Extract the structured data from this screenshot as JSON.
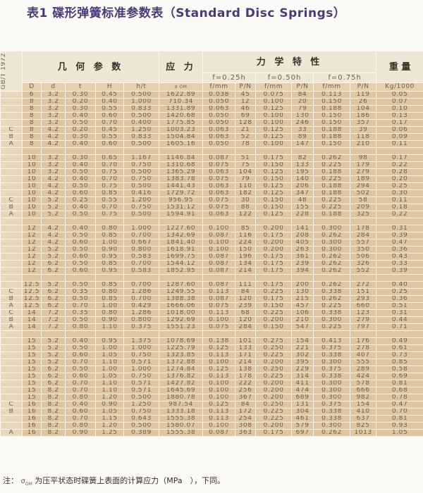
{
  "title": "表1  碟形弹簧标准参数表（Standard Disc Springs）",
  "header": {
    "standard": "GB/T 1972",
    "geometry": "几 何 参 数",
    "stress": "应 力",
    "mechanics": "力 学 特 性",
    "weight": "重 量",
    "f_groups": [
      "f=0.25h",
      "f=0.50h",
      "f=0.75h"
    ],
    "columns": [
      "D",
      "d",
      "t",
      "H",
      "h/t",
      "σ OM",
      "f/mm",
      "P/N",
      "f/mm",
      "P/N",
      "f/mm",
      "P/N",
      "Kg/1000"
    ]
  },
  "rows": [
    [
      "",
      "6",
      "3.2",
      "0.30",
      "0.45",
      "0.500",
      "1622.89",
      "0.038",
      "45",
      "0.075",
      "84",
      "0.113",
      "119",
      "0.05"
    ],
    [
      "",
      "8",
      "3.2",
      "0.20",
      "0.40",
      "1.000",
      "710.34",
      "0.050",
      "12",
      "0.100",
      "20",
      "0.150",
      "26",
      "0.07"
    ],
    [
      "",
      "8",
      "3.2",
      "0.30",
      "0.55",
      "0.833",
      "1331.89",
      "0.063",
      "46",
      "0.125",
      "79",
      "0.188",
      "104",
      "0.10"
    ],
    [
      "",
      "8",
      "3.2",
      "0.40",
      "0.60",
      "0.500",
      "1420.68",
      "0.050",
      "69",
      "0.100",
      "130",
      "0.150",
      "186",
      "0.13"
    ],
    [
      "",
      "8",
      "3.2",
      "0.50",
      "0.70",
      "0.400",
      "1775.85",
      "0.050",
      "128",
      "0.100",
      "246",
      "0.150",
      "357",
      "0.17"
    ],
    [
      "C",
      "8",
      "4.2",
      "0.20",
      "0.45",
      "1.250",
      "1003.23",
      "0.063",
      "21",
      "0.125",
      "33",
      "0.188",
      "39",
      "0.06"
    ],
    [
      "B",
      "8",
      "4.2",
      "0.30",
      "0.55",
      "0.833",
      "1504.84",
      "0.063",
      "52",
      "0.125",
      "89",
      "0.188",
      "118",
      "0.09"
    ],
    [
      "A",
      "8",
      "4.2",
      "0.40",
      "0.60",
      "0.500",
      "1605.16",
      "0.050",
      "78",
      "0.100",
      "147",
      "0.150",
      "210",
      "0.11"
    ],
    [],
    [
      "",
      "10",
      "3.2",
      "0.30",
      "0.65",
      "1.167",
      "1146.84",
      "0.087",
      "51",
      "0.175",
      "82",
      "0.262",
      "98",
      "0.17"
    ],
    [
      "",
      "10",
      "3.2",
      "0.40",
      "0.70",
      "0.750",
      "1310.68",
      "0.075",
      "75",
      "0.150",
      "133",
      "0.225",
      "179",
      "0.22"
    ],
    [
      "",
      "10",
      "3.2",
      "0.50",
      "0.75",
      "0.500",
      "1365.29",
      "0.063",
      "104",
      "0.125",
      "195",
      "0.188",
      "279",
      "0.28"
    ],
    [
      "",
      "10",
      "4.2",
      "0.40",
      "0.70",
      "0.750",
      "1383.78",
      "0.075",
      "79",
      "0.150",
      "140",
      "0.225",
      "189",
      "0.20"
    ],
    [
      "",
      "10",
      "4.2",
      "0.50",
      "0.75",
      "0.500",
      "1441.43",
      "0.063",
      "110",
      "0.125",
      "206",
      "0.188",
      "294",
      "0.25"
    ],
    [
      "",
      "10",
      "4.2",
      "0.60",
      "0.85",
      "0.416",
      "1729.72",
      "0.063",
      "182",
      "0.125",
      "347",
      "0.188",
      "502",
      "0.30"
    ],
    [
      "C",
      "10",
      "5.2",
      "0.25",
      "0.55",
      "1.200",
      "956.95",
      "0.075",
      "30",
      "0.150",
      "48",
      "0.225",
      "58",
      "0.11"
    ],
    [
      "B",
      "10",
      "5.2",
      "0.40",
      "0.70",
      "0.750",
      "1531.12",
      "0.075",
      "88",
      "0.150",
      "155",
      "0.225",
      "209",
      "0.18"
    ],
    [
      "A",
      "10",
      "5.2",
      "0.50",
      "0.75",
      "0.500",
      "1594.91",
      "0.063",
      "122",
      "0.125",
      "228",
      "0.188",
      "325",
      "0.22"
    ],
    [],
    [
      "",
      "12",
      "4.2",
      "0.40",
      "0.80",
      "1.000",
      "1227.60",
      "0.100",
      "85",
      "0.200",
      "141",
      "0.300",
      "178",
      "0.31"
    ],
    [
      "",
      "12",
      "4.2",
      "0.50",
      "0.85",
      "0.700",
      "1342.69",
      "0.087",
      "116",
      "0.175",
      "208",
      "0.262",
      "284",
      "0.39"
    ],
    [
      "",
      "12",
      "4.2",
      "0.60",
      "1.00",
      "0.667",
      "1841.40",
      "0.100",
      "224",
      "0.200",
      "405",
      "0.300",
      "557",
      "0.47"
    ],
    [
      "",
      "12",
      "5.2",
      "0.50",
      "0.90",
      "0.800",
      "1618.91",
      "0.100",
      "150",
      "0.200",
      "263",
      "0.300",
      "350",
      "0.36"
    ],
    [
      "",
      "12",
      "5.2",
      "0.60",
      "0.95",
      "0.583",
      "1699.75",
      "0.087",
      "196",
      "0.175",
      "361",
      "0.262",
      "506",
      "0.43"
    ],
    [
      "",
      "12",
      "6.2",
      "0.50",
      "0.85",
      "0.700",
      "1544.12",
      "0.087",
      "134",
      "0.175",
      "239",
      "0.262",
      "326",
      "0.33"
    ],
    [
      "",
      "12",
      "6.2",
      "0.60",
      "0.95",
      "0.583",
      "1852.95",
      "0.087",
      "214",
      "0.175",
      "394",
      "0.262",
      "552",
      "0.39"
    ],
    [],
    [
      "",
      "12.5",
      "5.2",
      "0.50",
      "0.85",
      "0.700",
      "1287.60",
      "0.087",
      "111",
      "0.175",
      "200",
      "0.262",
      "272",
      "0.40"
    ],
    [
      "C",
      "12.5",
      "6.2",
      "0.35",
      "0.80",
      "1.286",
      "1249.55",
      "0.113",
      "84",
      "0.225",
      "130",
      "0.338",
      "151",
      "0.25"
    ],
    [
      "B",
      "12.5",
      "6.2",
      "0.50",
      "0.85",
      "0.700",
      "1388.38",
      "0.087",
      "120",
      "0.175",
      "215",
      "0.262",
      "293",
      "0.36"
    ],
    [
      "A",
      "12.5",
      "6.2",
      "0.70",
      "1.00",
      "0.429",
      "1666.06",
      "0.075",
      "239",
      "0.150",
      "457",
      "0.225",
      "660",
      "0.51"
    ],
    [
      "C",
      "14",
      "7.2",
      "0.35",
      "0.80",
      "1.286",
      "1018.00",
      "0.113",
      "68",
      "0.225",
      "106",
      "0.338",
      "123",
      "0.31"
    ],
    [
      "B",
      "14",
      "7.2",
      "0.50",
      "0.90",
      "0.800",
      "1292.69",
      "0.100",
      "120",
      "0.200",
      "210",
      "0.300",
      "279",
      "0.44"
    ],
    [
      "A",
      "14",
      "7.2",
      "0.80",
      "1.10",
      "0.375",
      "1551.23",
      "0.075",
      "284",
      "0.150",
      "547",
      "0.225",
      "797",
      "0.71"
    ],
    [],
    [
      "",
      "15",
      "5.2",
      "0.40",
      "0.95",
      "1.375",
      "1078.69",
      "0.138",
      "101",
      "0.275",
      "154",
      "0.413",
      "176",
      "0.49"
    ],
    [
      "",
      "15",
      "5.2",
      "0.50",
      "1.00",
      "1.000",
      "1225.79",
      "0.125",
      "133",
      "0.250",
      "221",
      "0.375",
      "278",
      "0.61"
    ],
    [
      "",
      "15",
      "5.2",
      "0.60",
      "1.05",
      "0.750",
      "1323.85",
      "0.113",
      "171",
      "0.225",
      "302",
      "0.338",
      "407",
      "0.73"
    ],
    [
      "",
      "15",
      "5.2",
      "0.70",
      "1.10",
      "0.571",
      "1372.88",
      "0.100",
      "214",
      "0.200",
      "395",
      "0.300",
      "555",
      "0.85"
    ],
    [
      "",
      "15",
      "6.2",
      "0.50",
      "1.00",
      "1.000",
      "1274.84",
      "0.125",
      "138",
      "0.250",
      "229",
      "0.375",
      "289",
      "0.58"
    ],
    [
      "",
      "15",
      "6.2",
      "0.60",
      "1.05",
      "0.750",
      "1376.82",
      "0.113",
      "178",
      "0.225",
      "314",
      "0.338",
      "424",
      "0.69"
    ],
    [
      "",
      "15",
      "6.2",
      "0.70",
      "1.10",
      "0.571",
      "1427.82",
      "0.100",
      "222",
      "0.200",
      "411",
      "0.300",
      "578",
      "0.81"
    ],
    [
      "",
      "15",
      "8.2",
      "0.70",
      "1.10",
      "0.571",
      "1645.69",
      "0.100",
      "256",
      "0.200",
      "474",
      "0.300",
      "666",
      "0.68"
    ],
    [
      "",
      "15",
      "8.2",
      "0.80",
      "1.20",
      "0.500",
      "1880.78",
      "0.100",
      "367",
      "0.200",
      "689",
      "0.300",
      "982",
      "0.78"
    ],
    [
      "C",
      "16",
      "8.2",
      "0.40",
      "0.90",
      "1.250",
      "987.54",
      "0.125",
      "84",
      "0.250",
      "131",
      "0.375",
      "154",
      "0.47"
    ],
    [
      "B",
      "16",
      "8.2",
      "0.60",
      "1.05",
      "0.750",
      "1333.18",
      "0.113",
      "172",
      "0.225",
      "304",
      "0.338",
      "410",
      "0.70"
    ],
    [
      "",
      "16",
      "8.2",
      "0.70",
      "1.15",
      "0.643",
      "1555.38",
      "0.113",
      "254",
      "0.225",
      "461",
      "0.338",
      "637",
      "0.81"
    ],
    [
      "",
      "16",
      "8.2",
      "0.80",
      "1.20",
      "0.500",
      "1580.07",
      "0.100",
      "308",
      "0.200",
      "579",
      "0.300",
      "825",
      "0.93"
    ],
    [
      "A",
      "16",
      "8.2",
      "0.90",
      "1.25",
      "0.389",
      "1555.38",
      "0.087",
      "363",
      "0.175",
      "697",
      "0.262",
      "1013",
      "1.05"
    ]
  ],
  "note": {
    "prefix": "注：",
    "symbol": "σ",
    "subscript": "OM",
    "text": "为压平状态时碟簧上表面的计算应力（MPa　），下同。"
  }
}
